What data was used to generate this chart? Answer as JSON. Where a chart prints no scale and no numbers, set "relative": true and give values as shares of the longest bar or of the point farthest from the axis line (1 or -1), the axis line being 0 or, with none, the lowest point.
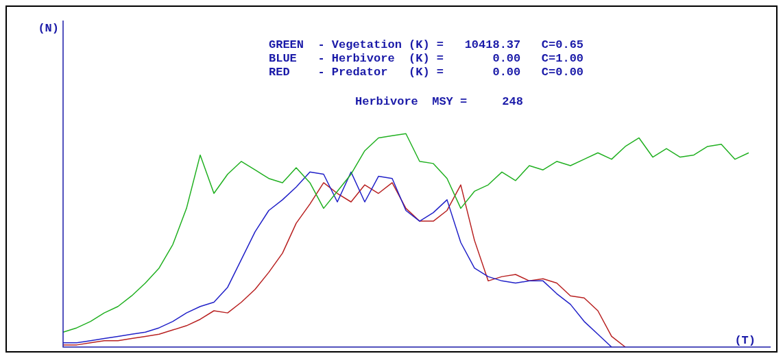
{
  "chart_data": {
    "type": "line",
    "relative": true,
    "xlabel": "(T)",
    "annotations": [
      "(N)",
      "GREEN  - Vegetation (K) =   10418.37   C=0.65",
      "BLUE   - Herbivore  (K) =       0.00   C=1.00",
      "RED    - Predator   (K) =       0.00   C=0.00",
      "Herbivore  MSY =     248"
    ],
    "categories": [
      null,
      null,
      null,
      null,
      null,
      null,
      null,
      null,
      null,
      null,
      null,
      null,
      null,
      null,
      null,
      null,
      null,
      null,
      null,
      null,
      null,
      null,
      null,
      null,
      null,
      null,
      null,
      null,
      null,
      null,
      null,
      null,
      null,
      null,
      null,
      null,
      null,
      null,
      null,
      null,
      null,
      null,
      null,
      null,
      null,
      null,
      null,
      null,
      null,
      null,
      null
    ],
    "legend": false,
    "marker": "none",
    "line_style": "solid",
    "series": [
      {
        "color": "#20b020",
        "values": [
          0.07,
          0.09,
          0.12,
          0.16,
          0.19,
          0.24,
          0.3,
          0.37,
          0.48,
          0.65,
          0.9,
          0.72,
          0.81,
          0.87,
          0.83,
          0.79,
          0.77,
          0.84,
          0.77,
          0.65,
          0.73,
          0.81,
          0.92,
          0.98,
          0.99,
          1,
          0.87,
          0.86,
          0.79,
          0.65,
          0.73,
          0.76,
          0.82,
          0.78,
          0.85,
          0.83,
          0.87,
          0.85,
          0.88,
          0.91,
          0.88,
          0.94,
          0.98,
          0.89,
          0.93,
          0.89,
          0.9,
          0.94,
          0.95,
          0.88,
          0.91
        ]
      },
      {
        "color": "#2020c8",
        "values": [
          0.02,
          0.02,
          0.03,
          0.04,
          0.05,
          0.06,
          0.07,
          0.09,
          0.12,
          0.16,
          0.19,
          0.21,
          0.28,
          0.41,
          0.54,
          0.64,
          0.69,
          0.75,
          0.82,
          0.81,
          0.68,
          0.82,
          0.68,
          0.8,
          0.79,
          0.64,
          0.59,
          0.63,
          0.69,
          0.49,
          0.37,
          0.33,
          0.31,
          0.3,
          0.31,
          0.31,
          0.25,
          0.2,
          0.12,
          0.06,
          0,
          null,
          null,
          null,
          null,
          null,
          null,
          null,
          null,
          null,
          null
        ]
      },
      {
        "color": "#b82020",
        "values": [
          0.01,
          0.01,
          0.02,
          0.03,
          0.03,
          0.04,
          0.05,
          0.06,
          0.08,
          0.1,
          0.13,
          0.17,
          0.16,
          0.21,
          0.27,
          0.35,
          0.44,
          0.58,
          0.67,
          0.77,
          0.72,
          0.68,
          0.76,
          0.72,
          0.77,
          0.65,
          0.59,
          0.59,
          0.64,
          0.76,
          0.5,
          0.31,
          0.33,
          0.34,
          0.31,
          0.32,
          0.3,
          0.24,
          0.23,
          0.17,
          0.05,
          0,
          null,
          null,
          null,
          null,
          null,
          null,
          null,
          null,
          null
        ]
      }
    ]
  }
}
